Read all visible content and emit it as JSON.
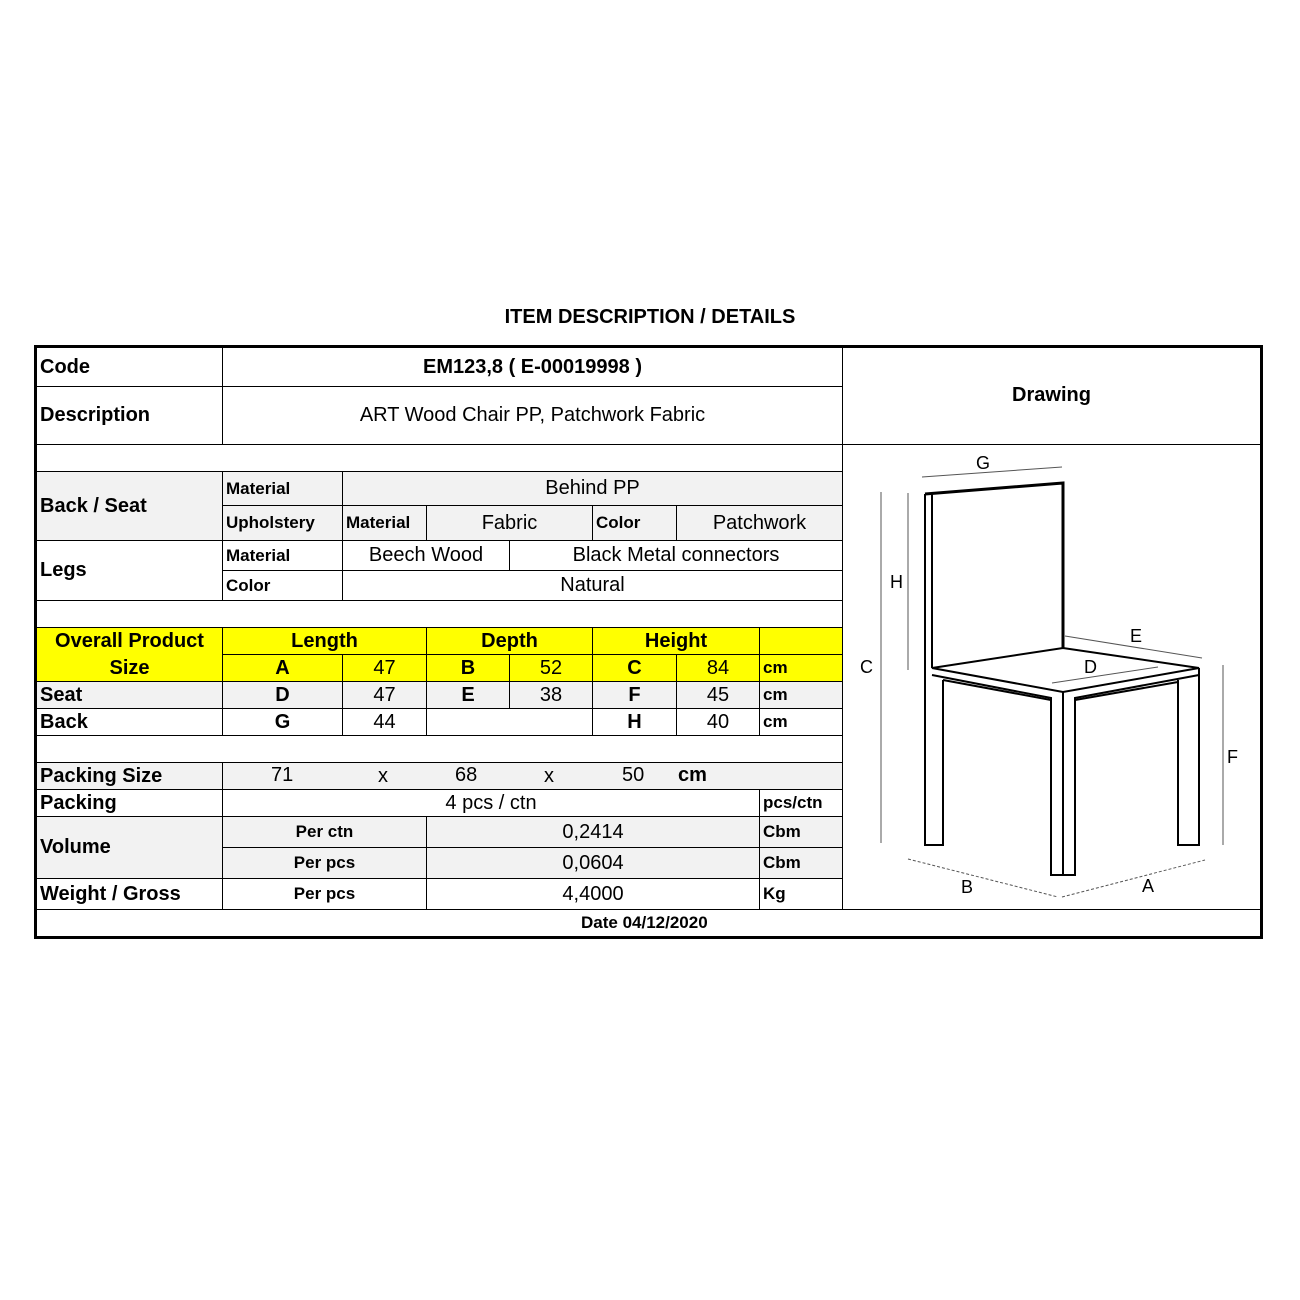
{
  "title": "ITEM DESCRIPTION / DETAILS",
  "code": {
    "label": "Code",
    "value": "EM123,8  ( E-00019998 )"
  },
  "description": {
    "label": "Description",
    "value": "ART Wood Chair PP, Patchwork Fabric"
  },
  "drawing": {
    "label": "Drawing",
    "dimension_letters": [
      "A",
      "B",
      "C",
      "D",
      "E",
      "F",
      "G",
      "H"
    ]
  },
  "back_seat": {
    "label": "Back / Seat",
    "material_label": "Material",
    "material_value": "Behind PP",
    "upholstery_label": "Upholstery",
    "uph_material_label": "Material",
    "uph_material_value": "Fabric",
    "uph_color_label": "Color",
    "uph_color_value": "Patchwork"
  },
  "legs": {
    "label": "Legs",
    "material_label": "Material",
    "material_value": "Beech Wood",
    "material_extra": "Black Metal connectors",
    "color_label": "Color",
    "color_value": "Natural"
  },
  "sizes": {
    "overall_label": "Overall Product Size",
    "length": "Length",
    "depth": "Depth",
    "height": "Height",
    "overall": [
      "A",
      "47",
      "B",
      "52",
      "C",
      "84",
      "cm"
    ],
    "seat_label": "Seat",
    "seat": [
      "D",
      "47",
      "E",
      "38",
      "F",
      "45",
      "cm"
    ],
    "back_label": "Back",
    "back": [
      "G",
      "44",
      "H",
      "40",
      "cm"
    ]
  },
  "packing_size": {
    "label": "Packing Size",
    "l": "71",
    "x1": "x",
    "w": "68",
    "x2": "x",
    "h": "50",
    "unit": "cm"
  },
  "packing": {
    "label": "Packing",
    "value": "4 pcs / ctn",
    "unit": "pcs/ctn"
  },
  "volume": {
    "label": "Volume",
    "per_ctn_label": "Per ctn",
    "per_ctn": "0,2414",
    "per_pcs_label": "Per pcs",
    "per_pcs": "0,0604",
    "unit": "Cbm"
  },
  "weight": {
    "label": "Weight / Gross",
    "per_pcs_label": "Per pcs",
    "value": "4,4000",
    "unit": "Kg"
  },
  "date": "Date 04/12/2020",
  "colors": {
    "highlight": "#ffff00",
    "shaded": "#f2f2f2"
  }
}
